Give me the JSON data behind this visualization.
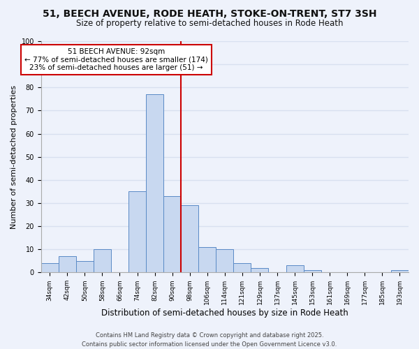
{
  "title1": "51, BEECH AVENUE, RODE HEATH, STOKE-ON-TRENT, ST7 3SH",
  "title2": "Size of property relative to semi-detached houses in Rode Heath",
  "xlabel": "Distribution of semi-detached houses by size in Rode Heath",
  "ylabel": "Number of semi-detached properties",
  "bin_labels": [
    "34sqm",
    "42sqm",
    "50sqm",
    "58sqm",
    "66sqm",
    "74sqm",
    "82sqm",
    "90sqm",
    "98sqm",
    "106sqm",
    "114sqm",
    "121sqm",
    "129sqm",
    "137sqm",
    "145sqm",
    "153sqm",
    "161sqm",
    "169sqm",
    "177sqm",
    "185sqm",
    "193sqm"
  ],
  "bar_values": [
    4,
    7,
    5,
    10,
    0,
    35,
    77,
    33,
    29,
    11,
    10,
    4,
    2,
    0,
    3,
    1,
    0,
    0,
    0,
    0,
    1
  ],
  "bar_color": "#c8d8f0",
  "bar_edge_color": "#5a8ac6",
  "vline_color": "#cc0000",
  "annotation_title": "51 BEECH AVENUE: 92sqm",
  "annotation_line1": "← 77% of semi-detached houses are smaller (174)",
  "annotation_line2": "23% of semi-detached houses are larger (51) →",
  "annotation_box_color": "#ffffff",
  "annotation_box_edge": "#cc0000",
  "ylim": [
    0,
    100
  ],
  "footer1": "Contains HM Land Registry data © Crown copyright and database right 2025.",
  "footer2": "Contains public sector information licensed under the Open Government Licence v3.0.",
  "bg_color": "#eef2fb",
  "grid_color": "#d8e0f0",
  "title1_fontsize": 10,
  "title2_fontsize": 8.5,
  "ylabel_fontsize": 8,
  "xlabel_fontsize": 8.5,
  "tick_fontsize": 6.5,
  "annot_fontsize": 7.5,
  "footer_fontsize": 6
}
